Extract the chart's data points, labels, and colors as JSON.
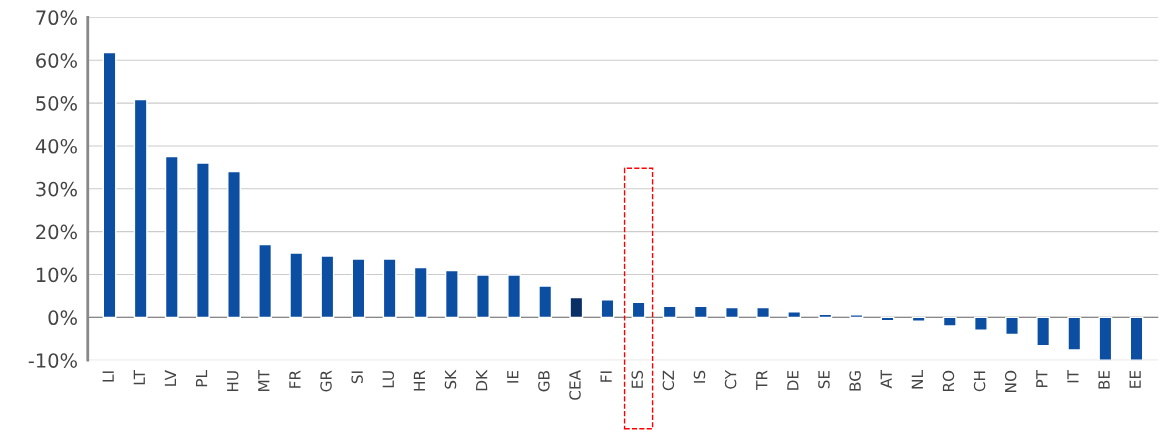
{
  "chart_data": {
    "type": "bar",
    "categories": [
      "LI",
      "LT",
      "LV",
      "PL",
      "HU",
      "MT",
      "FR",
      "GR",
      "SI",
      "LU",
      "HR",
      "SK",
      "DK",
      "IE",
      "GB",
      "CEA",
      "FI",
      "ES",
      "CZ",
      "IS",
      "CY",
      "TR",
      "DE",
      "SE",
      "BG",
      "AT",
      "NL",
      "RO",
      "CH",
      "NO",
      "PT",
      "IT",
      "BE",
      "EE"
    ],
    "values": [
      61.8,
      50.8,
      37.5,
      36,
      34,
      17,
      15,
      14.3,
      13.6,
      13.6,
      11.6,
      10.9,
      9.9,
      9.9,
      7.3,
      4.6,
      4.1,
      3.5,
      2.6,
      2.6,
      2.3,
      2.3,
      1.3,
      0.7,
      0.6,
      -0.8,
      -0.9,
      -2,
      -3,
      -4,
      -6.6,
      -7.6,
      -10,
      -10
    ],
    "colors": [
      "#0b4ea2",
      "#0b4ea2",
      "#0b4ea2",
      "#0b4ea2",
      "#0b4ea2",
      "#0b4ea2",
      "#0b4ea2",
      "#0b4ea2",
      "#0b4ea2",
      "#0b4ea2",
      "#0b4ea2",
      "#0b4ea2",
      "#0b4ea2",
      "#0b4ea2",
      "#0b4ea2",
      "#0a2f66",
      "#0b4ea2",
      "#0b4ea2",
      "#0b4ea2",
      "#0b4ea2",
      "#0b4ea2",
      "#0b4ea2",
      "#0b4ea2",
      "#0b4ea2",
      "#0b4ea2",
      "#0b4ea2",
      "#0b4ea2",
      "#0b4ea2",
      "#0b4ea2",
      "#0b4ea2",
      "#0b4ea2",
      "#0b4ea2",
      "#0b4ea2",
      "#0b4ea2"
    ],
    "ylim": [
      -10,
      70
    ],
    "yticks": [
      {
        "value": -10,
        "label": "-10%"
      },
      {
        "value": 0,
        "label": "0%"
      },
      {
        "value": 10,
        "label": "10%"
      },
      {
        "value": 20,
        "label": "20%"
      },
      {
        "value": 30,
        "label": "30%"
      },
      {
        "value": 40,
        "label": "40%"
      },
      {
        "value": 50,
        "label": "50%"
      },
      {
        "value": 60,
        "label": "60%"
      },
      {
        "value": 70,
        "label": "70%"
      }
    ],
    "grid": "y"
  }
}
